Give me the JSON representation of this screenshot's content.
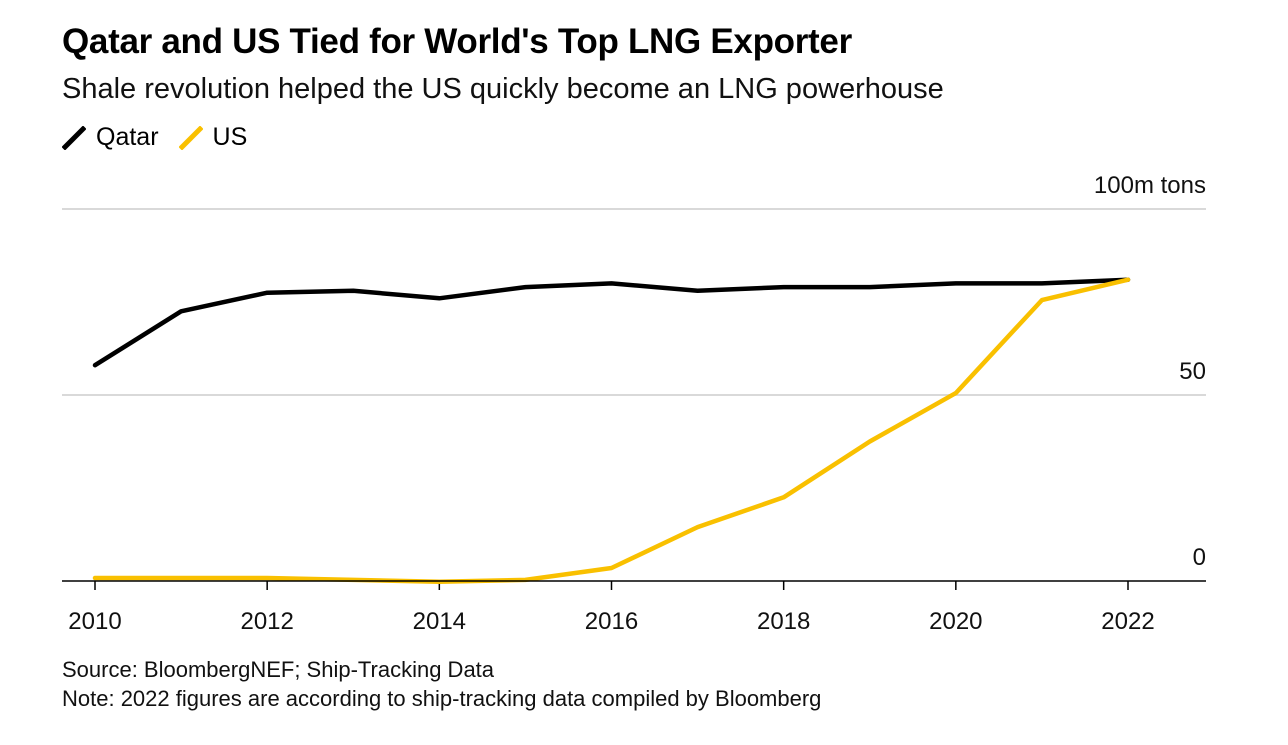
{
  "chart_data": {
    "type": "line",
    "title": "Qatar and US Tied for World's Top LNG Exporter",
    "subtitle": "Shale revolution helped the US quickly become an LNG powerhouse",
    "unit_label": "100m tons",
    "x": [
      2010,
      2011,
      2012,
      2013,
      2014,
      2015,
      2016,
      2017,
      2018,
      2019,
      2020,
      2021,
      2022
    ],
    "x_ticks": [
      "2010",
      "2012",
      "2014",
      "2016",
      "2018",
      "2020",
      "2022"
    ],
    "y_ticks": [
      {
        "value": 0,
        "label": "0"
      },
      {
        "value": 50,
        "label": "50"
      },
      {
        "value": 100,
        "label": "100m tons"
      }
    ],
    "ylim": [
      0,
      100
    ],
    "xlim": [
      2010,
      2022
    ],
    "legend_position": "top-left",
    "series": [
      {
        "name": "Qatar",
        "color": "#000000",
        "values": [
          58.0,
          72.5,
          77.5,
          78.0,
          76.0,
          79.0,
          80.0,
          78.0,
          79.0,
          79.0,
          80.0,
          80.0,
          81.0
        ]
      },
      {
        "name": "US",
        "color": "#f9c000",
        "values": [
          0.8,
          0.8,
          0.8,
          0.3,
          -0.2,
          0.3,
          3.5,
          14.5,
          22.5,
          37.5,
          50.5,
          75.5,
          81.0
        ]
      }
    ],
    "source": "Source: BloombergNEF; Ship-Tracking Data",
    "note": "Note: 2022 figures are according to ship-tracking data compiled by Bloomberg"
  }
}
